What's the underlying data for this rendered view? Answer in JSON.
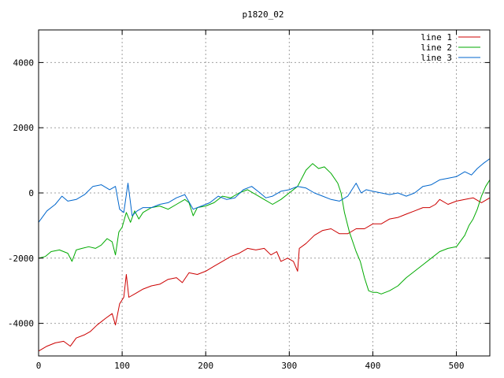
{
  "chart_data": {
    "type": "line",
    "title": "p1820_02",
    "xlabel": "",
    "ylabel": "",
    "xlim": [
      0,
      540
    ],
    "ylim": [
      -5000,
      5000
    ],
    "xticks": [
      0,
      100,
      200,
      300,
      400,
      500
    ],
    "yticks": [
      -4000,
      -2000,
      0,
      2000,
      4000
    ],
    "xtick_labels": [
      "0",
      "100",
      "200",
      "300",
      "400",
      "500"
    ],
    "ytick_labels": [
      "-4000",
      "-2000",
      "0",
      "2000",
      "4000"
    ],
    "grid": true,
    "legend_position": "top-right",
    "series": [
      {
        "name": "line 1",
        "color": "#cc0000",
        "points": [
          [
            0,
            -4850
          ],
          [
            10,
            -4700
          ],
          [
            20,
            -4600
          ],
          [
            30,
            -4550
          ],
          [
            38,
            -4700
          ],
          [
            45,
            -4450
          ],
          [
            55,
            -4350
          ],
          [
            62,
            -4250
          ],
          [
            70,
            -4050
          ],
          [
            80,
            -3850
          ],
          [
            88,
            -3700
          ],
          [
            92,
            -4050
          ],
          [
            97,
            -3400
          ],
          [
            102,
            -3200
          ],
          [
            105,
            -2500
          ],
          [
            108,
            -3200
          ],
          [
            115,
            -3100
          ],
          [
            125,
            -2950
          ],
          [
            135,
            -2850
          ],
          [
            145,
            -2800
          ],
          [
            155,
            -2650
          ],
          [
            165,
            -2600
          ],
          [
            172,
            -2750
          ],
          [
            180,
            -2450
          ],
          [
            190,
            -2500
          ],
          [
            200,
            -2400
          ],
          [
            210,
            -2250
          ],
          [
            220,
            -2100
          ],
          [
            230,
            -1950
          ],
          [
            240,
            -1850
          ],
          [
            250,
            -1700
          ],
          [
            260,
            -1750
          ],
          [
            270,
            -1700
          ],
          [
            278,
            -1900
          ],
          [
            285,
            -1800
          ],
          [
            290,
            -2100
          ],
          [
            298,
            -2000
          ],
          [
            305,
            -2100
          ],
          [
            310,
            -2400
          ],
          [
            312,
            -1700
          ],
          [
            320,
            -1550
          ],
          [
            330,
            -1300
          ],
          [
            340,
            -1150
          ],
          [
            350,
            -1100
          ],
          [
            360,
            -1250
          ],
          [
            370,
            -1250
          ],
          [
            380,
            -1100
          ],
          [
            390,
            -1100
          ],
          [
            400,
            -950
          ],
          [
            410,
            -950
          ],
          [
            420,
            -800
          ],
          [
            430,
            -750
          ],
          [
            440,
            -650
          ],
          [
            450,
            -550
          ],
          [
            460,
            -450
          ],
          [
            468,
            -450
          ],
          [
            475,
            -350
          ],
          [
            480,
            -200
          ],
          [
            490,
            -350
          ],
          [
            500,
            -250
          ],
          [
            510,
            -200
          ],
          [
            520,
            -150
          ],
          [
            530,
            -300
          ],
          [
            540,
            -150
          ]
        ]
      },
      {
        "name": "line 2",
        "color": "#00aa00",
        "points": [
          [
            0,
            -2000
          ],
          [
            8,
            -1950
          ],
          [
            15,
            -1800
          ],
          [
            25,
            -1750
          ],
          [
            35,
            -1850
          ],
          [
            40,
            -2100
          ],
          [
            45,
            -1750
          ],
          [
            52,
            -1700
          ],
          [
            60,
            -1650
          ],
          [
            68,
            -1700
          ],
          [
            75,
            -1600
          ],
          [
            82,
            -1400
          ],
          [
            88,
            -1500
          ],
          [
            92,
            -1900
          ],
          [
            96,
            -1200
          ],
          [
            100,
            -1050
          ],
          [
            105,
            -600
          ],
          [
            110,
            -900
          ],
          [
            115,
            -550
          ],
          [
            120,
            -800
          ],
          [
            125,
            -600
          ],
          [
            135,
            -450
          ],
          [
            145,
            -400
          ],
          [
            155,
            -500
          ],
          [
            165,
            -350
          ],
          [
            175,
            -200
          ],
          [
            180,
            -300
          ],
          [
            185,
            -700
          ],
          [
            190,
            -450
          ],
          [
            200,
            -400
          ],
          [
            210,
            -300
          ],
          [
            220,
            -100
          ],
          [
            230,
            -150
          ],
          [
            240,
            0
          ],
          [
            250,
            100
          ],
          [
            260,
            -50
          ],
          [
            270,
            -200
          ],
          [
            280,
            -350
          ],
          [
            290,
            -200
          ],
          [
            300,
            0
          ],
          [
            310,
            200
          ],
          [
            320,
            700
          ],
          [
            328,
            900
          ],
          [
            335,
            750
          ],
          [
            342,
            800
          ],
          [
            350,
            600
          ],
          [
            358,
            300
          ],
          [
            362,
            0
          ],
          [
            366,
            -600
          ],
          [
            372,
            -1200
          ],
          [
            380,
            -1800
          ],
          [
            385,
            -2100
          ],
          [
            390,
            -2600
          ],
          [
            395,
            -3000
          ],
          [
            400,
            -3050
          ],
          [
            405,
            -3050
          ],
          [
            410,
            -3100
          ],
          [
            420,
            -3000
          ],
          [
            430,
            -2850
          ],
          [
            440,
            -2600
          ],
          [
            450,
            -2400
          ],
          [
            460,
            -2200
          ],
          [
            470,
            -2000
          ],
          [
            480,
            -1800
          ],
          [
            490,
            -1700
          ],
          [
            500,
            -1650
          ],
          [
            510,
            -1300
          ],
          [
            515,
            -1000
          ],
          [
            520,
            -800
          ],
          [
            525,
            -500
          ],
          [
            530,
            -100
          ],
          [
            535,
            200
          ],
          [
            540,
            400
          ]
        ]
      },
      {
        "name": "line 3",
        "color": "#0066cc",
        "points": [
          [
            0,
            -900
          ],
          [
            10,
            -550
          ],
          [
            20,
            -350
          ],
          [
            28,
            -100
          ],
          [
            35,
            -250
          ],
          [
            45,
            -200
          ],
          [
            55,
            -50
          ],
          [
            65,
            200
          ],
          [
            75,
            250
          ],
          [
            85,
            100
          ],
          [
            92,
            200
          ],
          [
            97,
            -500
          ],
          [
            102,
            -600
          ],
          [
            107,
            300
          ],
          [
            112,
            -700
          ],
          [
            118,
            -550
          ],
          [
            125,
            -450
          ],
          [
            135,
            -450
          ],
          [
            145,
            -350
          ],
          [
            155,
            -300
          ],
          [
            165,
            -150
          ],
          [
            175,
            -50
          ],
          [
            185,
            -500
          ],
          [
            195,
            -400
          ],
          [
            205,
            -300
          ],
          [
            215,
            -100
          ],
          [
            225,
            -200
          ],
          [
            235,
            -150
          ],
          [
            245,
            100
          ],
          [
            255,
            200
          ],
          [
            265,
            0
          ],
          [
            272,
            -150
          ],
          [
            280,
            -100
          ],
          [
            290,
            50
          ],
          [
            300,
            100
          ],
          [
            310,
            200
          ],
          [
            320,
            150
          ],
          [
            330,
            0
          ],
          [
            340,
            -100
          ],
          [
            350,
            -200
          ],
          [
            360,
            -250
          ],
          [
            370,
            -100
          ],
          [
            380,
            300
          ],
          [
            386,
            0
          ],
          [
            392,
            100
          ],
          [
            400,
            50
          ],
          [
            410,
            0
          ],
          [
            420,
            -50
          ],
          [
            430,
            0
          ],
          [
            440,
            -100
          ],
          [
            450,
            0
          ],
          [
            460,
            200
          ],
          [
            470,
            250
          ],
          [
            480,
            400
          ],
          [
            490,
            450
          ],
          [
            500,
            500
          ],
          [
            510,
            650
          ],
          [
            518,
            550
          ],
          [
            525,
            750
          ],
          [
            532,
            900
          ],
          [
            540,
            1050
          ]
        ]
      }
    ]
  }
}
